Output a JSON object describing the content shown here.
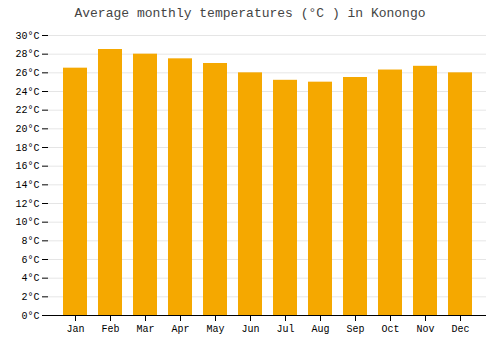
{
  "chart_data": {
    "type": "bar",
    "title": "Average monthly temperatures (°C ) in Konongo",
    "categories": [
      "Jan",
      "Feb",
      "Mar",
      "Apr",
      "May",
      "Jun",
      "Jul",
      "Aug",
      "Sep",
      "Oct",
      "Nov",
      "Dec"
    ],
    "values": [
      26.5,
      28.5,
      28.0,
      27.5,
      27.0,
      26.0,
      25.2,
      25.0,
      25.5,
      26.3,
      26.7,
      26.0
    ],
    "color": "#F5A800",
    "ylim": [
      0,
      30
    ],
    "yticks": [
      {
        "value": 0,
        "label": "0°C"
      },
      {
        "value": 2,
        "label": "2°C"
      },
      {
        "value": 4,
        "label": "4°C"
      },
      {
        "value": 6,
        "label": "6°C"
      },
      {
        "value": 8,
        "label": "8°C"
      },
      {
        "value": 10,
        "label": "10°C"
      },
      {
        "value": 12,
        "label": "12°C"
      },
      {
        "value": 14,
        "label": "14°C"
      },
      {
        "value": 16,
        "label": "16°C"
      },
      {
        "value": 18,
        "label": "18°C"
      },
      {
        "value": 20,
        "label": "20°C"
      },
      {
        "value": 22,
        "label": "22°C"
      },
      {
        "value": 24,
        "label": "24°C"
      },
      {
        "value": 26,
        "label": "26°C"
      },
      {
        "value": 28,
        "label": "28°C"
      },
      {
        "value": 30,
        "label": "30°C"
      }
    ],
    "grid": true
  }
}
